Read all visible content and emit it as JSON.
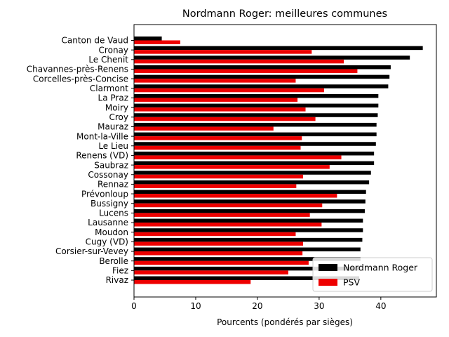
{
  "chart_data": {
    "type": "bar",
    "orientation": "horizontal",
    "title": "Nordmann Roger: meilleures communes",
    "xlabel": "Pourcents (pondérés par sièges)",
    "ylabel": "",
    "xlim": [
      0,
      49
    ],
    "xticks": [
      0,
      10,
      20,
      30,
      40
    ],
    "grid": false,
    "legend_position": "bottom-right",
    "categories": [
      "Canton de Vaud",
      "Cronay",
      "Le Chenit",
      "Chavannes-près-Renens",
      "Corcelles-près-Concise",
      "Clarmont",
      "La Praz",
      "Moiry",
      "Croy",
      "Mauraz",
      "Mont-la-Ville",
      "Le Lieu",
      "Renens (VD)",
      "Saubraz",
      "Cossonay",
      "Rennaz",
      "Prévonloup",
      "Bussigny",
      "Lucens",
      "Lausanne",
      "Moudon",
      "Cugy (VD)",
      "Corsier-sur-Vevey",
      "Berolle",
      "Fiez",
      "Rivaz"
    ],
    "series": [
      {
        "name": "Nordmann Roger",
        "color": "#000000",
        "values": [
          4.5,
          46.8,
          44.7,
          41.6,
          41.4,
          41.2,
          39.6,
          39.6,
          39.5,
          39.3,
          39.3,
          39.2,
          38.9,
          38.9,
          38.4,
          38.1,
          37.6,
          37.5,
          37.4,
          37.1,
          37.1,
          37.0,
          36.7,
          36.7,
          36.6,
          36.5
        ]
      },
      {
        "name": "PSV",
        "color": "#ee0000",
        "values": [
          7.5,
          28.8,
          34.0,
          36.2,
          26.2,
          30.8,
          26.5,
          27.8,
          29.4,
          22.6,
          27.2,
          27.0,
          33.6,
          31.7,
          27.4,
          26.3,
          32.9,
          30.5,
          28.5,
          30.4,
          26.2,
          27.4,
          27.3,
          28.3,
          25.0,
          18.9
        ]
      }
    ]
  }
}
